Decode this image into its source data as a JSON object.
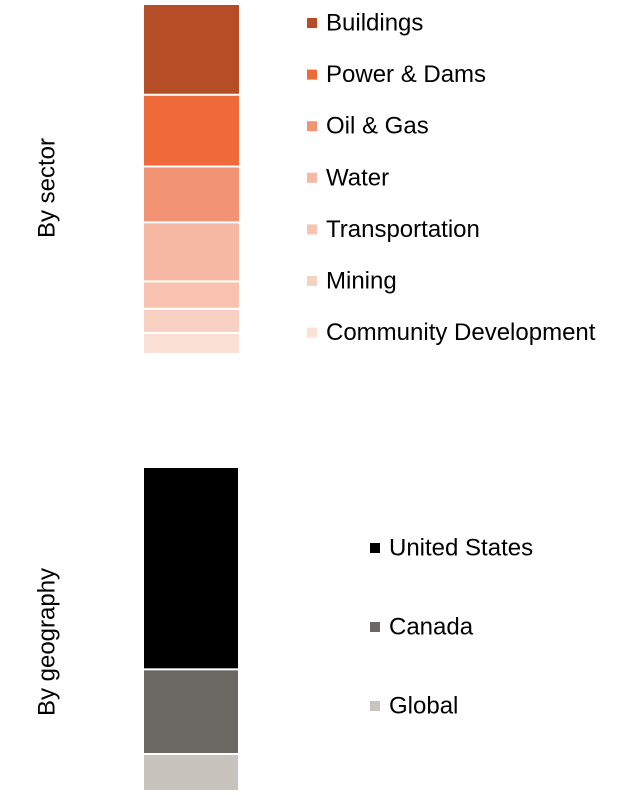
{
  "chart_data": [
    {
      "type": "bar",
      "stacked": true,
      "orientation": "vertical",
      "title": "",
      "side_label": "By sector",
      "xlabel": "",
      "ylabel": "",
      "grid": false,
      "legend_position": "right",
      "unit": "percent",
      "series": [
        {
          "name": "Buildings",
          "value": 28,
          "color": "#B54E27"
        },
        {
          "name": "Power & Dams",
          "value": 22,
          "color": "#EE6A38"
        },
        {
          "name": "Oil & Gas",
          "value": 17,
          "color": "#F29373"
        },
        {
          "name": "Water",
          "value": 18,
          "color": "#F6B8A2"
        },
        {
          "name": "Transportation",
          "value": 8,
          "color": "#F8C4B1"
        },
        {
          "name": "Mining",
          "value": 7,
          "color": "#F9D1C3"
        },
        {
          "name": "Community Development",
          "value": 6,
          "color": "#FBE0D6"
        }
      ]
    },
    {
      "type": "bar",
      "stacked": true,
      "orientation": "vertical",
      "title": "",
      "side_label": "By geography",
      "xlabel": "",
      "ylabel": "",
      "grid": false,
      "legend_position": "right",
      "unit": "percent",
      "series": [
        {
          "name": "United States",
          "value": 63,
          "color": "#000000"
        },
        {
          "name": "Canada",
          "value": 26,
          "color": "#6B6762"
        },
        {
          "name": "Global",
          "value": 11,
          "color": "#C8C3BC"
        }
      ]
    }
  ]
}
